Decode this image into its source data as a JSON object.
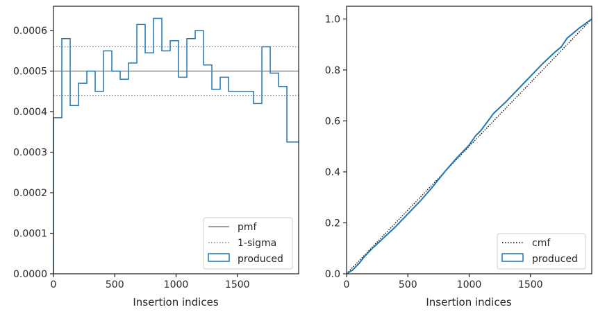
{
  "chart_data": [
    {
      "type": "line",
      "xlabel": "Insertion indices",
      "ylabel": "",
      "xlim": [
        0,
        2000
      ],
      "ylim": [
        0,
        0.00066
      ],
      "xticks": [
        0,
        500,
        1000,
        1500
      ],
      "xtick_labels": [
        "0",
        "500",
        "1000",
        "1500"
      ],
      "yticks": [
        0,
        0.0001,
        0.0002,
        0.0003,
        0.0004,
        0.0005,
        0.0006
      ],
      "ytick_labels": [
        "0.0000",
        "0.0001",
        "0.0002",
        "0.0003",
        "0.0004",
        "0.0005",
        "0.0006"
      ],
      "legend_position": "lower-right",
      "series": [
        {
          "name": "pmf",
          "kind": "hline",
          "y": 0.0005,
          "color": "#808080",
          "style": "solid"
        },
        {
          "name": "1-sigma",
          "kind": "hlines",
          "y": [
            0.00044,
            0.00056
          ],
          "color": "#808080",
          "style": "dotted"
        },
        {
          "name": "produced",
          "kind": "step-histogram",
          "color": "#1f77b4",
          "bin_edges": [
            0,
            68,
            136,
            204,
            272,
            340,
            408,
            476,
            544,
            612,
            680,
            748,
            816,
            884,
            952,
            1020,
            1088,
            1156,
            1224,
            1292,
            1360,
            1428,
            1496,
            1564,
            1632,
            1700,
            1768,
            1836,
            1904,
            1972,
            2000
          ],
          "values": [
            0.000385,
            0.00058,
            0.000415,
            0.00047,
            0.0005,
            0.00045,
            0.00055,
            0.0005,
            0.00048,
            0.00052,
            0.000615,
            0.000545,
            0.00063,
            0.00055,
            0.000575,
            0.000485,
            0.00058,
            0.0006,
            0.000515,
            0.000455,
            0.000485,
            0.00045,
            0.00045,
            0.00045,
            0.00042,
            0.00056,
            0.000495,
            0.000462,
            0.000325,
            0.000325
          ]
        }
      ]
    },
    {
      "type": "line",
      "xlabel": "Insertion indices",
      "ylabel": "",
      "xlim": [
        0,
        2000
      ],
      "ylim": [
        0,
        1.05
      ],
      "xticks": [
        0,
        500,
        1000,
        1500
      ],
      "xtick_labels": [
        "0",
        "500",
        "1000",
        "1500"
      ],
      "yticks": [
        0,
        0.2,
        0.4,
        0.6,
        0.8,
        1.0
      ],
      "ytick_labels": [
        "0.0",
        "0.2",
        "0.4",
        "0.6",
        "0.8",
        "1.0"
      ],
      "legend_position": "lower-right",
      "series": [
        {
          "name": "cmf",
          "color": "#000000",
          "style": "dotted",
          "x": [
            0,
            2000
          ],
          "y": [
            0,
            1.0
          ]
        },
        {
          "name": "produced",
          "color": "#1f77b4",
          "style": "solid",
          "x": [
            0,
            50,
            100,
            150,
            200,
            300,
            400,
            500,
            600,
            700,
            800,
            900,
            1000,
            1050,
            1100,
            1200,
            1300,
            1400,
            1500,
            1600,
            1700,
            1750,
            1800,
            1900,
            2000
          ],
          "y": [
            0,
            0.015,
            0.04,
            0.07,
            0.095,
            0.14,
            0.185,
            0.235,
            0.285,
            0.34,
            0.4,
            0.455,
            0.505,
            0.54,
            0.565,
            0.63,
            0.675,
            0.725,
            0.775,
            0.825,
            0.87,
            0.89,
            0.925,
            0.965,
            1.0
          ]
        }
      ]
    }
  ]
}
